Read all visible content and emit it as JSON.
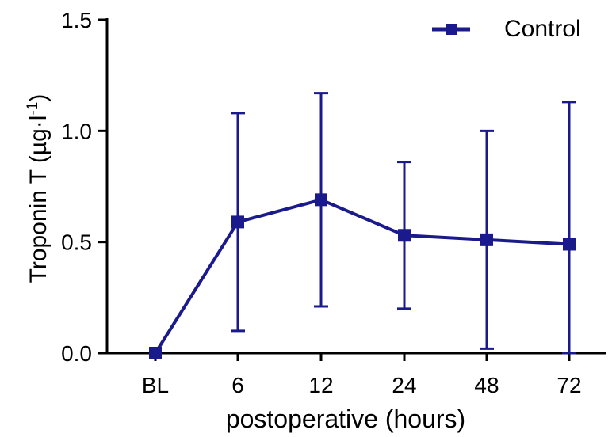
{
  "chart_data": {
    "type": "line",
    "title": "",
    "xlabel": "postoperative (hours)",
    "ylabel": "Troponin  T (µg·l",
    "ylabel_sup": "-1",
    "ylabel_close": ")",
    "categories": [
      "BL",
      "6",
      "12",
      "24",
      "48",
      "72"
    ],
    "y_ticks": [
      "0.0",
      "0.5",
      "1.0",
      "1.5"
    ],
    "ylim": [
      0,
      1.5
    ],
    "grid": false,
    "legend_position": "top-right",
    "series": [
      {
        "name": "Control",
        "color": "#1a1a8c",
        "marker": "square",
        "values": [
          0.0,
          0.59,
          0.69,
          0.53,
          0.51,
          0.49
        ],
        "error_upper": [
          0.0,
          1.08,
          1.17,
          0.86,
          1.0,
          1.13
        ],
        "error_lower": [
          0.0,
          0.1,
          0.21,
          0.2,
          0.02,
          0.0
        ]
      }
    ]
  }
}
